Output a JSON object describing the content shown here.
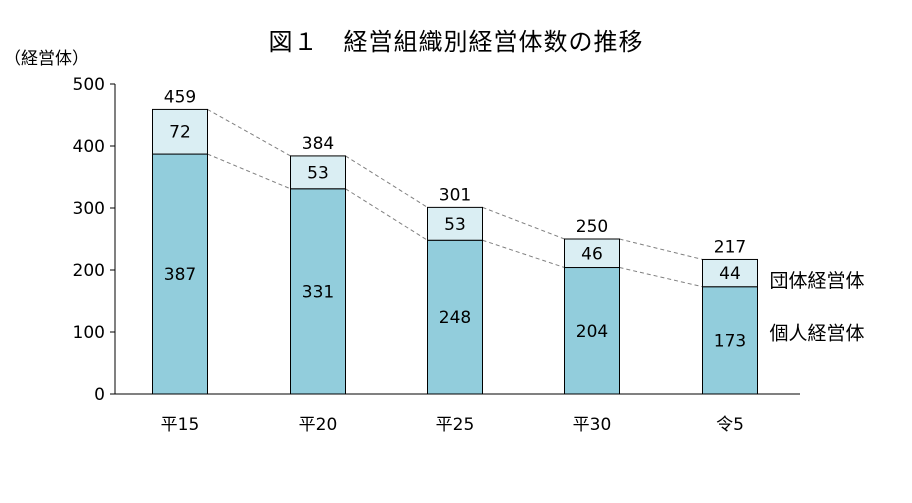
{
  "chart_data": {
    "type": "bar",
    "stacked": true,
    "title": "図１　経営組織別経営体数の推移",
    "ylabel": "（経営体）",
    "ylim": [
      0,
      500
    ],
    "yticks": [
      "0",
      "100",
      "200",
      "300",
      "400",
      "500"
    ],
    "categories": [
      "平15",
      "平20",
      "平25",
      "平30",
      "令5"
    ],
    "series": [
      {
        "name": "個人経営体",
        "values": [
          387,
          331,
          248,
          204,
          173
        ],
        "color": "#92cddc"
      },
      {
        "name": "団体経営体",
        "values": [
          72,
          53,
          53,
          46,
          44
        ],
        "color": "#daeef3"
      }
    ],
    "totals": [
      459,
      384,
      301,
      250,
      217
    ],
    "value_labels": {
      "individual": [
        "387",
        "331",
        "248",
        "204",
        "173"
      ],
      "group": [
        "72",
        "53",
        "53",
        "46",
        "44"
      ],
      "totals": [
        "459",
        "384",
        "301",
        "250",
        "217"
      ]
    },
    "grid": false,
    "legend": "right"
  }
}
